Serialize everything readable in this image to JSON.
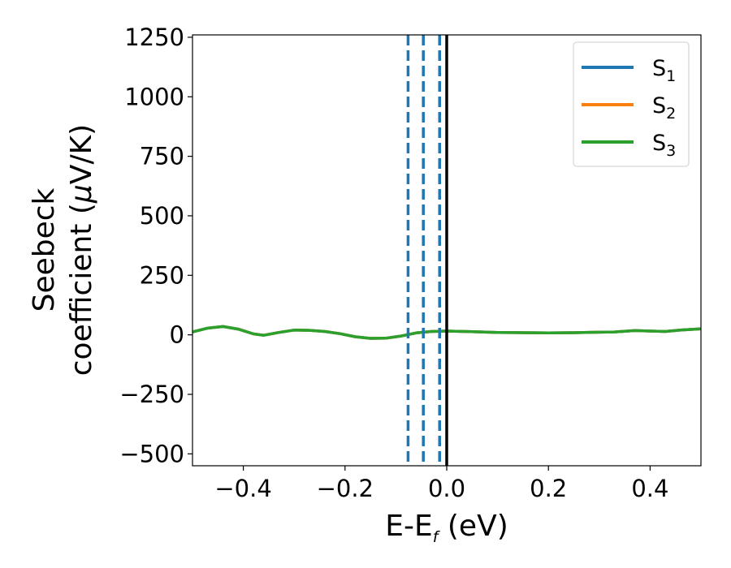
{
  "chart_data": {
    "type": "line",
    "title": "",
    "xlabel": {
      "main": "E-E",
      "sub": "f",
      "unit": " (eV)"
    },
    "ylabel": {
      "line1": "Seebeck",
      "line2_prefix": "coefficient  (",
      "mu": "μ",
      "line2_suffix": "V/K)"
    },
    "xlim": [
      -0.5,
      0.5
    ],
    "ylim": [
      -550,
      1260
    ],
    "xticks": [
      -0.4,
      -0.2,
      0.0,
      0.2,
      0.4
    ],
    "xtick_labels": [
      "−0.4",
      "−0.2",
      "0.0",
      "0.2",
      "0.4"
    ],
    "yticks": [
      -500,
      -250,
      0,
      250,
      500,
      750,
      1000,
      1250
    ],
    "ytick_labels": [
      "−500",
      "−250",
      "0",
      "250",
      "500",
      "750",
      "1000",
      "1250"
    ],
    "grid": false,
    "legend_position": "top-right",
    "series": [
      {
        "name": "S",
        "sub": "1",
        "color": "#1f77b4",
        "x": [
          -0.5,
          -0.47,
          -0.44,
          -0.41,
          -0.38,
          -0.36,
          -0.33,
          -0.3,
          -0.27,
          -0.24,
          -0.21,
          -0.18,
          -0.15,
          -0.12,
          -0.09,
          -0.06,
          -0.03,
          0.0,
          0.05,
          0.1,
          0.15,
          0.2,
          0.25,
          0.3,
          0.33,
          0.37,
          0.4,
          0.43,
          0.46,
          0.5
        ],
        "y": [
          12,
          28,
          35,
          24,
          4,
          -2,
          10,
          20,
          19,
          14,
          5,
          -8,
          -15,
          -14,
          -5,
          8,
          14,
          16,
          13,
          10,
          9,
          8,
          9,
          11,
          12,
          18,
          16,
          14,
          20,
          25
        ]
      },
      {
        "name": "S",
        "sub": "2",
        "color": "#ff7f0e",
        "x": [
          -0.5,
          -0.47,
          -0.44,
          -0.41,
          -0.38,
          -0.36,
          -0.33,
          -0.3,
          -0.27,
          -0.24,
          -0.21,
          -0.18,
          -0.15,
          -0.12,
          -0.09,
          -0.06,
          -0.03,
          0.0,
          0.05,
          0.1,
          0.15,
          0.2,
          0.25,
          0.3,
          0.33,
          0.37,
          0.4,
          0.43,
          0.46,
          0.5
        ],
        "y": [
          12,
          28,
          35,
          24,
          4,
          -2,
          10,
          20,
          19,
          14,
          5,
          -8,
          -15,
          -14,
          -5,
          8,
          14,
          16,
          13,
          10,
          9,
          8,
          9,
          11,
          12,
          18,
          16,
          14,
          20,
          25
        ]
      },
      {
        "name": "S",
        "sub": "3",
        "color": "#2ca02c",
        "x": [
          -0.5,
          -0.47,
          -0.44,
          -0.41,
          -0.38,
          -0.36,
          -0.33,
          -0.3,
          -0.27,
          -0.24,
          -0.21,
          -0.18,
          -0.15,
          -0.12,
          -0.09,
          -0.06,
          -0.03,
          0.0,
          0.05,
          0.1,
          0.15,
          0.2,
          0.25,
          0.3,
          0.33,
          0.37,
          0.4,
          0.43,
          0.46,
          0.5
        ],
        "y": [
          12,
          28,
          35,
          24,
          4,
          -2,
          10,
          20,
          19,
          14,
          5,
          -8,
          -15,
          -14,
          -5,
          8,
          14,
          16,
          13,
          10,
          9,
          8,
          9,
          11,
          12,
          18,
          16,
          14,
          20,
          25
        ]
      }
    ],
    "vertical_lines": [
      {
        "x": -0.076,
        "style": "dashed",
        "color": "#1f77b4"
      },
      {
        "x": -0.046,
        "style": "dashed",
        "color": "#1f77b4"
      },
      {
        "x": -0.014,
        "style": "dashed",
        "color": "#1f77b4"
      },
      {
        "x": 0.0,
        "style": "solid",
        "color": "#000000"
      }
    ]
  }
}
